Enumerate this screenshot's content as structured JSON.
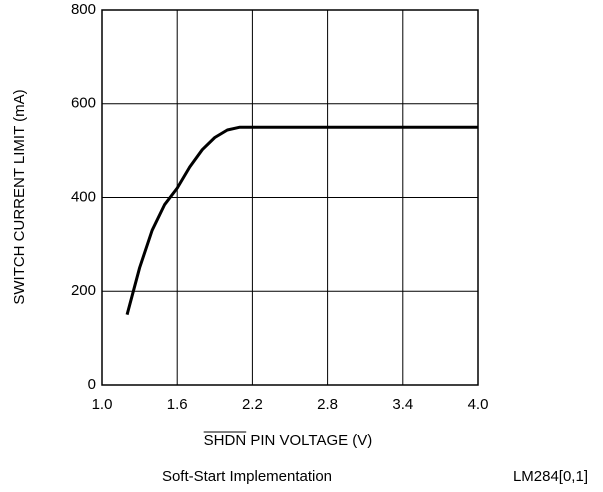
{
  "chart_data": {
    "type": "line",
    "ylabel": "SWITCH CURRENT LIMIT (mA)",
    "xlabel": "SHDN PIN VOLTAGE (V)",
    "caption": "Soft-Start Implementation",
    "figure_id": "LM284[0,1]",
    "x": [
      1.2,
      1.3,
      1.4,
      1.5,
      1.6,
      1.7,
      1.8,
      1.9,
      2.0,
      2.1,
      2.2,
      2.8,
      3.4,
      4.0
    ],
    "series": [
      {
        "color": "#000000",
        "values": [
          150,
          250,
          330,
          385,
          420,
          465,
          502,
          528,
          544,
          550,
          550,
          550,
          550,
          550
        ]
      }
    ],
    "xlim": [
      1.0,
      4.0
    ],
    "xticks": [
      {
        "value": 1.0,
        "label": "1.0"
      },
      1.6,
      2.2,
      2.8,
      3.4,
      {
        "value": 4.0,
        "label": "4.0"
      }
    ],
    "ylim": [
      0,
      800
    ],
    "yticks": [
      0,
      200,
      400,
      600,
      800
    ],
    "grid": true
  }
}
